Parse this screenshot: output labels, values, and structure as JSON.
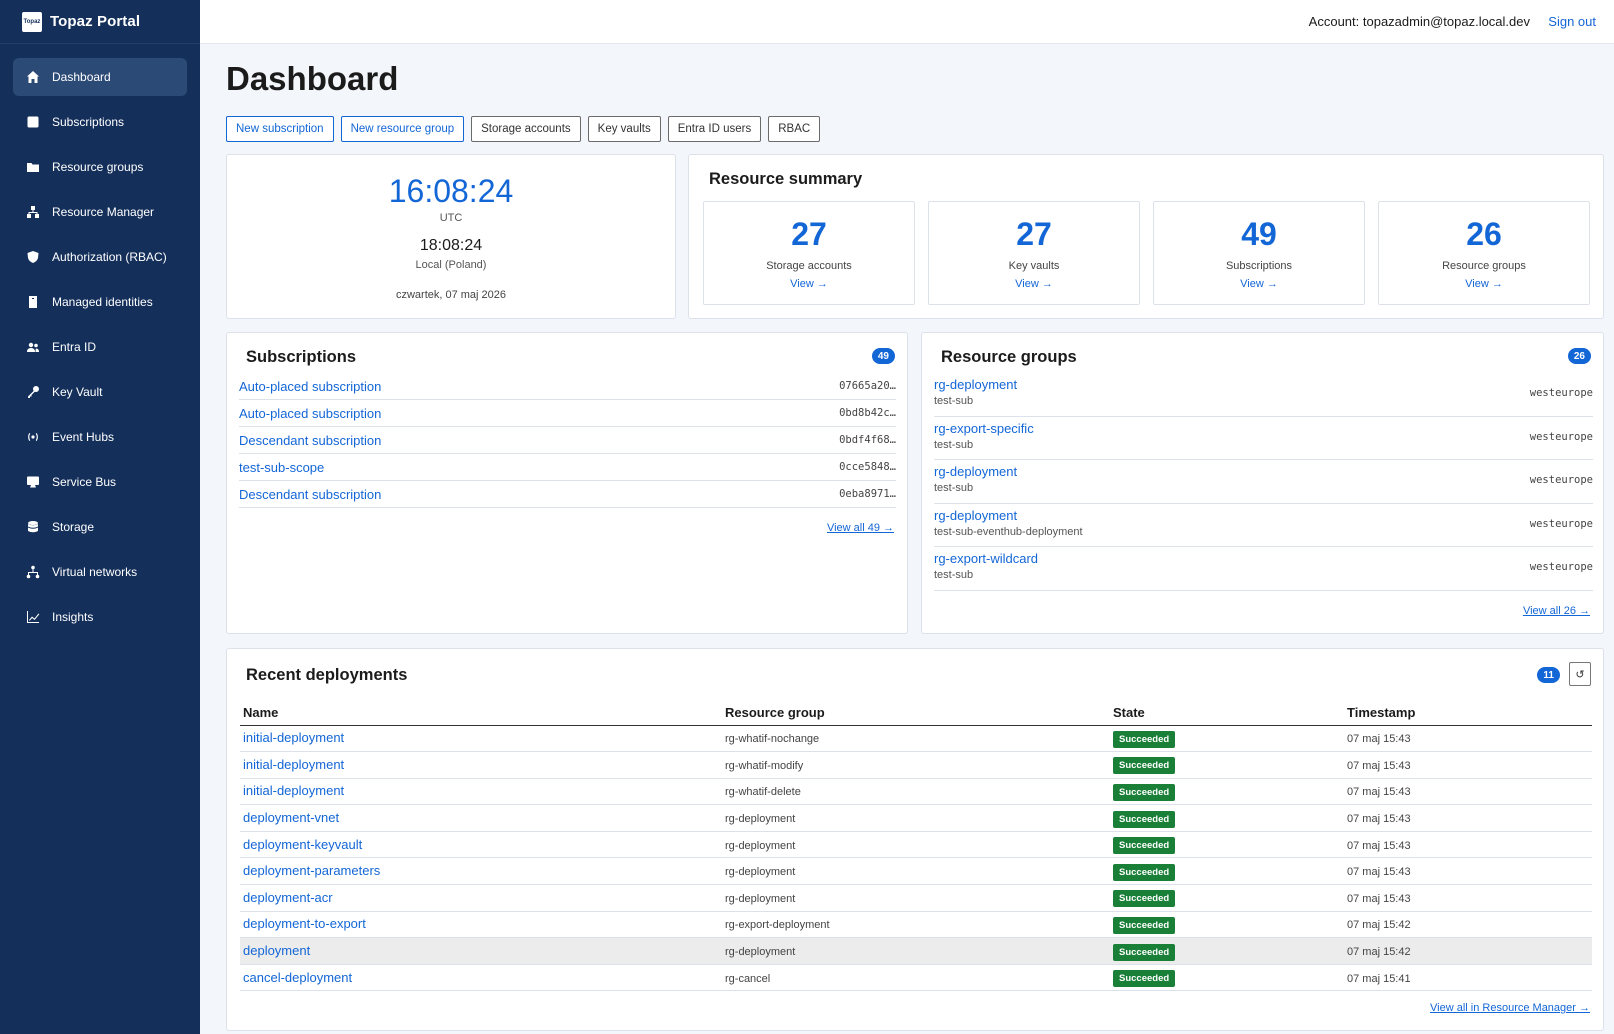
{
  "app": {
    "title": "Topaz Portal",
    "logo_text": "Topaz"
  },
  "sidebar": {
    "items": [
      {
        "label": "Dashboard",
        "icon": "home-icon",
        "active": true
      },
      {
        "label": "Subscriptions",
        "icon": "square-icon"
      },
      {
        "label": "Resource groups",
        "icon": "folder-icon"
      },
      {
        "label": "Resource Manager",
        "icon": "hierarchy-icon"
      },
      {
        "label": "Authorization (RBAC)",
        "icon": "shield-icon"
      },
      {
        "label": "Managed identities",
        "icon": "badge-icon"
      },
      {
        "label": "Entra ID",
        "icon": "users-icon"
      },
      {
        "label": "Key Vault",
        "icon": "key-icon"
      },
      {
        "label": "Event Hubs",
        "icon": "broadcast-icon"
      },
      {
        "label": "Service Bus",
        "icon": "monitor-icon"
      },
      {
        "label": "Storage",
        "icon": "database-icon"
      },
      {
        "label": "Virtual networks",
        "icon": "network-icon"
      },
      {
        "label": "Insights",
        "icon": "chart-icon"
      }
    ]
  },
  "topbar": {
    "account": "Account: topazadmin@topaz.local.dev",
    "signout": "Sign out"
  },
  "page": {
    "title": "Dashboard"
  },
  "quick_actions": [
    {
      "label": "New subscription",
      "primary": true
    },
    {
      "label": "New resource group",
      "primary": true
    },
    {
      "label": "Storage accounts",
      "primary": false
    },
    {
      "label": "Key vaults",
      "primary": false
    },
    {
      "label": "Entra ID users",
      "primary": false
    },
    {
      "label": "RBAC",
      "primary": false
    }
  ],
  "clock": {
    "utc_time": "16:08:24",
    "utc_label": "UTC",
    "local_time": "18:08:24",
    "local_label": "Local (Poland)",
    "date": "czwartek, 07 maj 2026"
  },
  "summary": {
    "title": "Resource summary",
    "stats": [
      {
        "value": "27",
        "label": "Storage accounts",
        "link": "View →"
      },
      {
        "value": "27",
        "label": "Key vaults",
        "link": "View →"
      },
      {
        "value": "49",
        "label": "Subscriptions",
        "link": "View →"
      },
      {
        "value": "26",
        "label": "Resource groups",
        "link": "View →"
      }
    ]
  },
  "subscriptions": {
    "title": "Subscriptions",
    "count": "49",
    "items": [
      {
        "name": "Auto-placed subscription",
        "id": "07665a20…"
      },
      {
        "name": "Auto-placed subscription",
        "id": "0bd8b42c…"
      },
      {
        "name": "Descendant subscription",
        "id": "0bdf4f68…"
      },
      {
        "name": "test-sub-scope",
        "id": "0cce5848…"
      },
      {
        "name": "Descendant subscription",
        "id": "0eba8971…"
      }
    ],
    "view_all": "View all 49 →"
  },
  "resource_groups": {
    "title": "Resource groups",
    "count": "26",
    "items": [
      {
        "name": "rg-deployment",
        "subscription": "test-sub",
        "location": "westeurope"
      },
      {
        "name": "rg-export-specific",
        "subscription": "test-sub",
        "location": "westeurope"
      },
      {
        "name": "rg-deployment",
        "subscription": "test-sub",
        "location": "westeurope"
      },
      {
        "name": "rg-deployment",
        "subscription": "test-sub-eventhub-deployment",
        "location": "westeurope"
      },
      {
        "name": "rg-export-wildcard",
        "subscription": "test-sub",
        "location": "westeurope"
      }
    ],
    "view_all": "View all 26 →"
  },
  "deployments": {
    "title": "Recent deployments",
    "count": "11",
    "refresh_icon": "↺",
    "columns": [
      "Name",
      "Resource group",
      "State",
      "Timestamp"
    ],
    "rows": [
      {
        "name": "initial-deployment",
        "rg": "rg-whatif-nochange",
        "state": "Succeeded",
        "ts": "07 maj 15:43"
      },
      {
        "name": "initial-deployment",
        "rg": "rg-whatif-modify",
        "state": "Succeeded",
        "ts": "07 maj 15:43"
      },
      {
        "name": "initial-deployment",
        "rg": "rg-whatif-delete",
        "state": "Succeeded",
        "ts": "07 maj 15:43"
      },
      {
        "name": "deployment-vnet",
        "rg": "rg-deployment",
        "state": "Succeeded",
        "ts": "07 maj 15:43"
      },
      {
        "name": "deployment-keyvault",
        "rg": "rg-deployment",
        "state": "Succeeded",
        "ts": "07 maj 15:43"
      },
      {
        "name": "deployment-parameters",
        "rg": "rg-deployment",
        "state": "Succeeded",
        "ts": "07 maj 15:43"
      },
      {
        "name": "deployment-acr",
        "rg": "rg-deployment",
        "state": "Succeeded",
        "ts": "07 maj 15:43"
      },
      {
        "name": "deployment-to-export",
        "rg": "rg-export-deployment",
        "state": "Succeeded",
        "ts": "07 maj 15:42"
      },
      {
        "name": "deployment",
        "rg": "rg-deployment",
        "state": "Succeeded",
        "ts": "07 maj 15:42",
        "highlighted": true
      },
      {
        "name": "cancel-deployment",
        "rg": "rg-cancel",
        "state": "Succeeded",
        "ts": "07 maj 15:41"
      }
    ],
    "view_all": "View all in Resource Manager →"
  },
  "colors": {
    "sidebar_bg": "#142f5a",
    "accent": "#1366d6",
    "success": "#1a7f37"
  }
}
